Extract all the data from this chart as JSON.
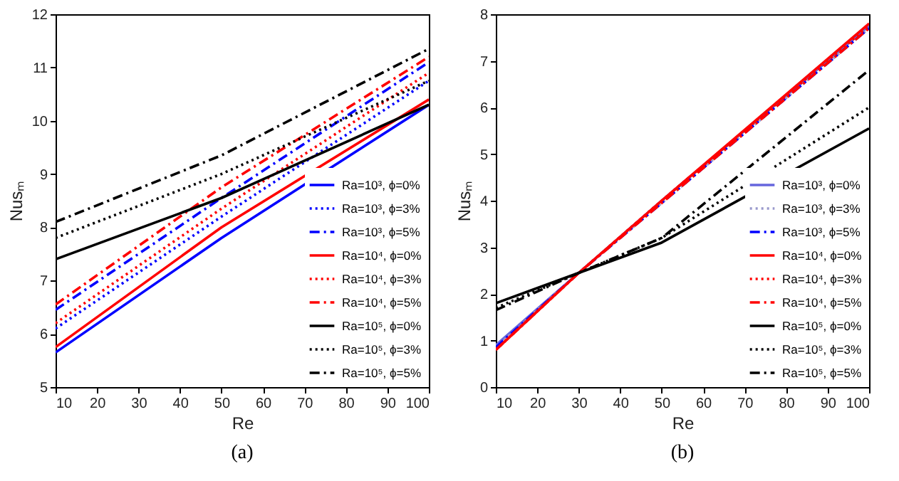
{
  "chart_data": [
    {
      "type": "line",
      "title": "(a)",
      "xlabel": "Re",
      "ylabel": "Nusₘ",
      "xlim": [
        10,
        100
      ],
      "xticks": [
        10,
        20,
        30,
        40,
        50,
        60,
        70,
        80,
        90,
        100
      ],
      "ylim": [
        5,
        12
      ],
      "yticks": [
        5,
        6,
        7,
        8,
        9,
        10,
        11,
        12
      ],
      "legend": "bottom right",
      "grid": false,
      "series": [
        {
          "name": "Ra=10³, ϕ=0%",
          "color": "#0000ff",
          "line_style": "solid",
          "x": [
            10,
            50,
            100
          ],
          "values": [
            5.65,
            7.8,
            10.3
          ]
        },
        {
          "name": "Ra=10³, ϕ=3%",
          "color": "#0000ff",
          "line_style": "dotted",
          "x": [
            10,
            50,
            100
          ],
          "values": [
            6.1,
            8.2,
            10.75
          ]
        },
        {
          "name": "Ra=10³, ϕ=5%",
          "color": "#0000ff",
          "line_style": "dashdot",
          "x": [
            10,
            50,
            100
          ],
          "values": [
            6.45,
            8.55,
            11.1
          ]
        },
        {
          "name": "Ra=10⁴, ϕ=0%",
          "color": "#ff0000",
          "line_style": "solid",
          "x": [
            10,
            50,
            100
          ],
          "values": [
            5.75,
            8.0,
            10.4
          ]
        },
        {
          "name": "Ra=10⁴, ϕ=3%",
          "color": "#ff0000",
          "line_style": "dotted",
          "x": [
            10,
            50,
            100
          ],
          "values": [
            6.2,
            8.35,
            10.9
          ]
        },
        {
          "name": "Ra=10⁴, ϕ=5%",
          "color": "#ff0000",
          "line_style": "dashdot",
          "x": [
            10,
            50,
            100
          ],
          "values": [
            6.55,
            8.75,
            11.2
          ]
        },
        {
          "name": "Ra=10⁵, ϕ=0%",
          "color": "#000000",
          "line_style": "solid",
          "x": [
            10,
            50,
            100
          ],
          "values": [
            7.4,
            8.55,
            10.3
          ]
        },
        {
          "name": "Ra=10⁵, ϕ=3%",
          "color": "#000000",
          "line_style": "dotted",
          "x": [
            10,
            50,
            100
          ],
          "values": [
            7.8,
            9.0,
            10.75
          ]
        },
        {
          "name": "Ra=10⁵, ϕ=5%",
          "color": "#000000",
          "line_style": "dashdot",
          "x": [
            10,
            50,
            100
          ],
          "values": [
            8.1,
            9.35,
            11.35
          ]
        }
      ]
    },
    {
      "type": "line",
      "title": "(b)",
      "xlabel": "Re",
      "ylabel": "Nusₘ",
      "xlim": [
        10,
        100
      ],
      "xticks": [
        10,
        20,
        30,
        40,
        50,
        60,
        70,
        80,
        90,
        100
      ],
      "ylim": [
        0,
        8
      ],
      "yticks": [
        0,
        1,
        2,
        3,
        4,
        5,
        6,
        7,
        8
      ],
      "legend": "bottom right",
      "grid": false,
      "series": [
        {
          "name": "Ra=10³, ϕ=0%",
          "color": "#6666dd",
          "line_style": "solid",
          "x": [
            10,
            30,
            50,
            100
          ],
          "values": [
            0.9,
            2.45,
            4.0,
            7.75
          ]
        },
        {
          "name": "Ra=10³, ϕ=3%",
          "color": "#9999cc",
          "line_style": "dotted",
          "x": [
            10,
            30,
            50,
            100
          ],
          "values": [
            0.85,
            2.45,
            3.95,
            7.7
          ]
        },
        {
          "name": "Ra=10³, ϕ=5%",
          "color": "#0000ff",
          "line_style": "dashdot",
          "x": [
            10,
            30,
            50,
            100
          ],
          "values": [
            0.85,
            2.45,
            3.95,
            7.7
          ]
        },
        {
          "name": "Ra=10⁴, ϕ=0%",
          "color": "#ff0000",
          "line_style": "solid",
          "x": [
            10,
            30,
            50,
            100
          ],
          "values": [
            0.8,
            2.45,
            4.0,
            7.8
          ]
        },
        {
          "name": "Ra=10⁴, ϕ=3%",
          "color": "#ff0000",
          "line_style": "dotted",
          "x": [
            10,
            30,
            50,
            100
          ],
          "values": [
            0.8,
            2.45,
            4.0,
            7.75
          ]
        },
        {
          "name": "Ra=10⁴, ϕ=5%",
          "color": "#ff0000",
          "line_style": "dashdot",
          "x": [
            10,
            30,
            50,
            100
          ],
          "values": [
            0.8,
            2.45,
            3.95,
            7.7
          ]
        },
        {
          "name": "Ra=10⁵, ϕ=0%",
          "color": "#000000",
          "line_style": "solid",
          "x": [
            10,
            30,
            50,
            100
          ],
          "values": [
            1.8,
            2.45,
            3.1,
            5.55
          ]
        },
        {
          "name": "Ra=10⁵, ϕ=3%",
          "color": "#000000",
          "line_style": "dotted",
          "x": [
            10,
            30,
            50,
            100
          ],
          "values": [
            1.7,
            2.45,
            3.2,
            6.0
          ]
        },
        {
          "name": "Ra=10⁵, ϕ=5%",
          "color": "#000000",
          "line_style": "dashdot",
          "x": [
            10,
            30,
            50,
            100
          ],
          "values": [
            1.65,
            2.45,
            3.2,
            6.8
          ]
        }
      ]
    }
  ]
}
